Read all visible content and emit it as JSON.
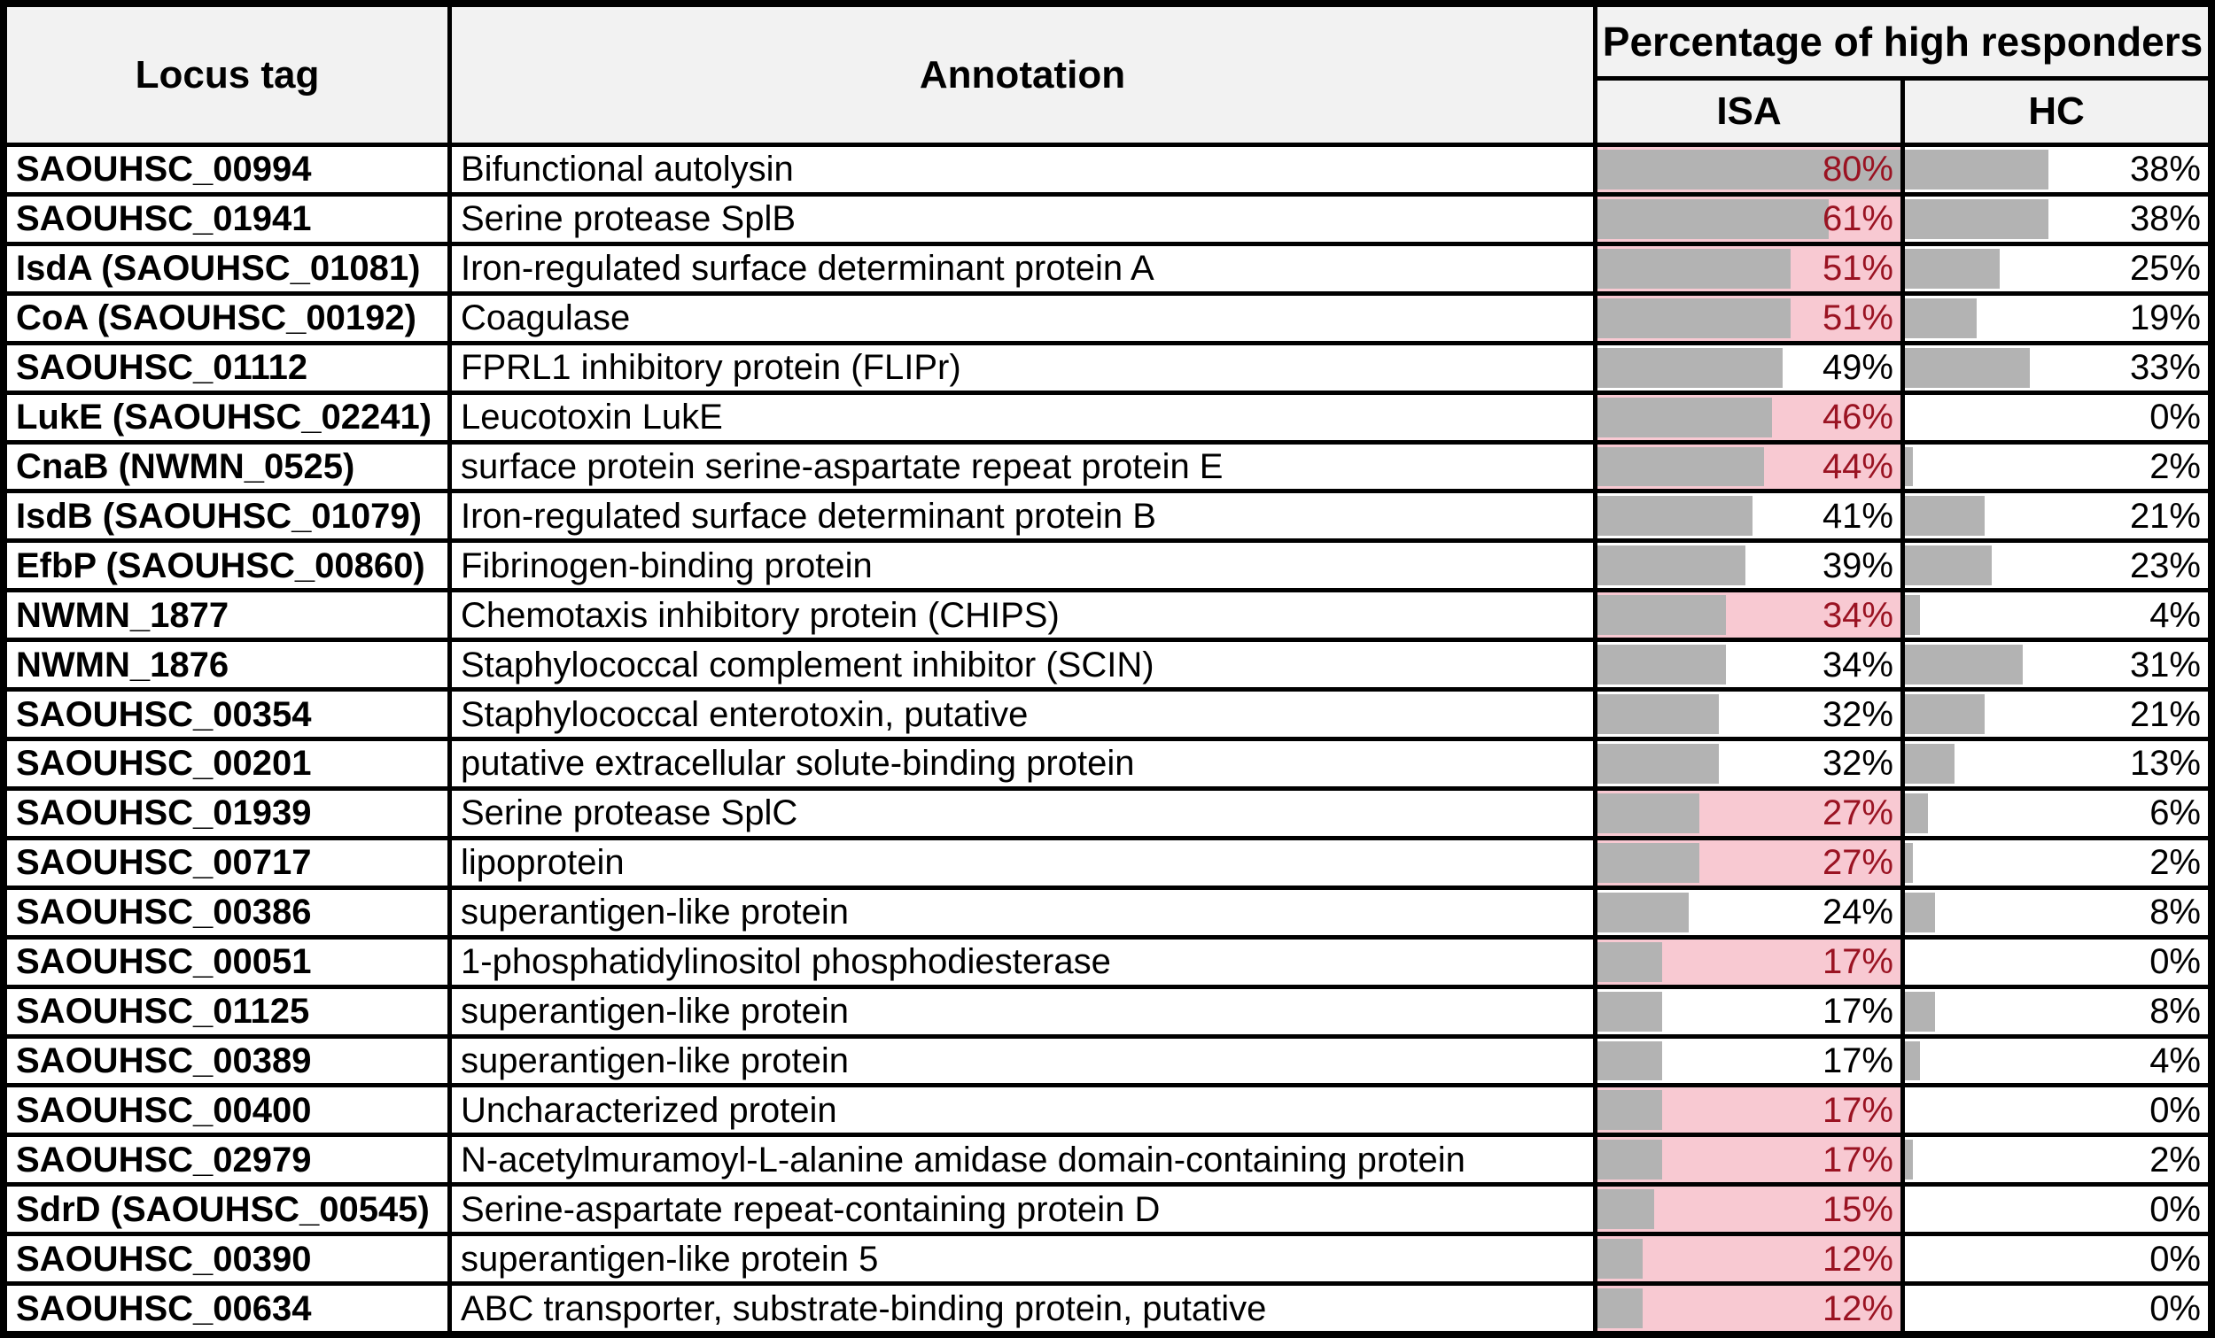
{
  "styles": {
    "header_bg": "#f2f2f2",
    "row_bg": "#ffffff",
    "bar_fill": "#b3b3b3",
    "highlight_bg": "#f8c9d2",
    "highlight_text": "#9a1322",
    "border": "#000000",
    "text": "#000000"
  },
  "chart_data": {
    "type": "table",
    "columns": [
      "Locus tag",
      "Annotation",
      "Percentage of high responders"
    ],
    "subcolumns": [
      "ISA",
      "HC"
    ],
    "unit": "%",
    "bar_value_range": [
      0,
      80
    ],
    "rows": [
      {
        "locus_tag": "SAOUHSC_00994",
        "annotation": "Bifunctional autolysin",
        "isa": 80,
        "hc": 38,
        "isa_highlighted": true
      },
      {
        "locus_tag": "SAOUHSC_01941",
        "annotation": "Serine protease SplB",
        "isa": 61,
        "hc": 38,
        "isa_highlighted": true
      },
      {
        "locus_tag": "IsdA (SAOUHSC_01081)",
        "annotation": "Iron-regulated surface determinant protein A",
        "isa": 51,
        "hc": 25,
        "isa_highlighted": true
      },
      {
        "locus_tag": "CoA (SAOUHSC_00192)",
        "annotation": "Coagulase",
        "isa": 51,
        "hc": 19,
        "isa_highlighted": true
      },
      {
        "locus_tag": "SAOUHSC_01112",
        "annotation": "FPRL1 inhibitory protein (FLIPr)",
        "isa": 49,
        "hc": 33,
        "isa_highlighted": false
      },
      {
        "locus_tag": "LukE (SAOUHSC_02241)",
        "annotation": "Leucotoxin LukE",
        "isa": 46,
        "hc": 0,
        "isa_highlighted": true
      },
      {
        "locus_tag": "CnaB (NWMN_0525)",
        "annotation": "surface protein serine-aspartate repeat protein E",
        "isa": 44,
        "hc": 2,
        "isa_highlighted": true
      },
      {
        "locus_tag": "IsdB (SAOUHSC_01079)",
        "annotation": "Iron-regulated surface determinant protein B",
        "isa": 41,
        "hc": 21,
        "isa_highlighted": false
      },
      {
        "locus_tag": "EfbP (SAOUHSC_00860)",
        "annotation": "Fibrinogen-binding protein",
        "isa": 39,
        "hc": 23,
        "isa_highlighted": false
      },
      {
        "locus_tag": "NWMN_1877",
        "annotation": "Chemotaxis inhibitory protein (CHIPS)",
        "isa": 34,
        "hc": 4,
        "isa_highlighted": true
      },
      {
        "locus_tag": "NWMN_1876",
        "annotation": "Staphylococcal complement inhibitor (SCIN)",
        "isa": 34,
        "hc": 31,
        "isa_highlighted": false
      },
      {
        "locus_tag": "SAOUHSC_00354",
        "annotation": "Staphylococcal enterotoxin, putative",
        "isa": 32,
        "hc": 21,
        "isa_highlighted": false
      },
      {
        "locus_tag": "SAOUHSC_00201",
        "annotation": "putative extracellular solute-binding protein",
        "isa": 32,
        "hc": 13,
        "isa_highlighted": false
      },
      {
        "locus_tag": "SAOUHSC_01939",
        "annotation": "Serine protease SplC",
        "isa": 27,
        "hc": 6,
        "isa_highlighted": true
      },
      {
        "locus_tag": "SAOUHSC_00717",
        "annotation": "lipoprotein",
        "isa": 27,
        "hc": 2,
        "isa_highlighted": true
      },
      {
        "locus_tag": "SAOUHSC_00386",
        "annotation": "superantigen-like protein",
        "isa": 24,
        "hc": 8,
        "isa_highlighted": false
      },
      {
        "locus_tag": "SAOUHSC_00051",
        "annotation": "1-phosphatidylinositol phosphodiesterase",
        "isa": 17,
        "hc": 0,
        "isa_highlighted": true
      },
      {
        "locus_tag": "SAOUHSC_01125",
        "annotation": "superantigen-like protein",
        "isa": 17,
        "hc": 8,
        "isa_highlighted": false
      },
      {
        "locus_tag": "SAOUHSC_00389",
        "annotation": "superantigen-like protein",
        "isa": 17,
        "hc": 4,
        "isa_highlighted": false
      },
      {
        "locus_tag": "SAOUHSC_00400",
        "annotation": "Uncharacterized protein",
        "isa": 17,
        "hc": 0,
        "isa_highlighted": true
      },
      {
        "locus_tag": "SAOUHSC_02979",
        "annotation": "N-acetylmuramoyl-L-alanine amidase domain-containing protein",
        "isa": 17,
        "hc": 2,
        "isa_highlighted": true
      },
      {
        "locus_tag": "SdrD (SAOUHSC_00545)",
        "annotation": "Serine-aspartate repeat-containing protein D",
        "isa": 15,
        "hc": 0,
        "isa_highlighted": true
      },
      {
        "locus_tag": "SAOUHSC_00390",
        "annotation": "superantigen-like protein 5",
        "isa": 12,
        "hc": 0,
        "isa_highlighted": true
      },
      {
        "locus_tag": "SAOUHSC_00634",
        "annotation": "ABC transporter, substrate-binding protein, putative",
        "isa": 12,
        "hc": 0,
        "isa_highlighted": true
      }
    ]
  }
}
